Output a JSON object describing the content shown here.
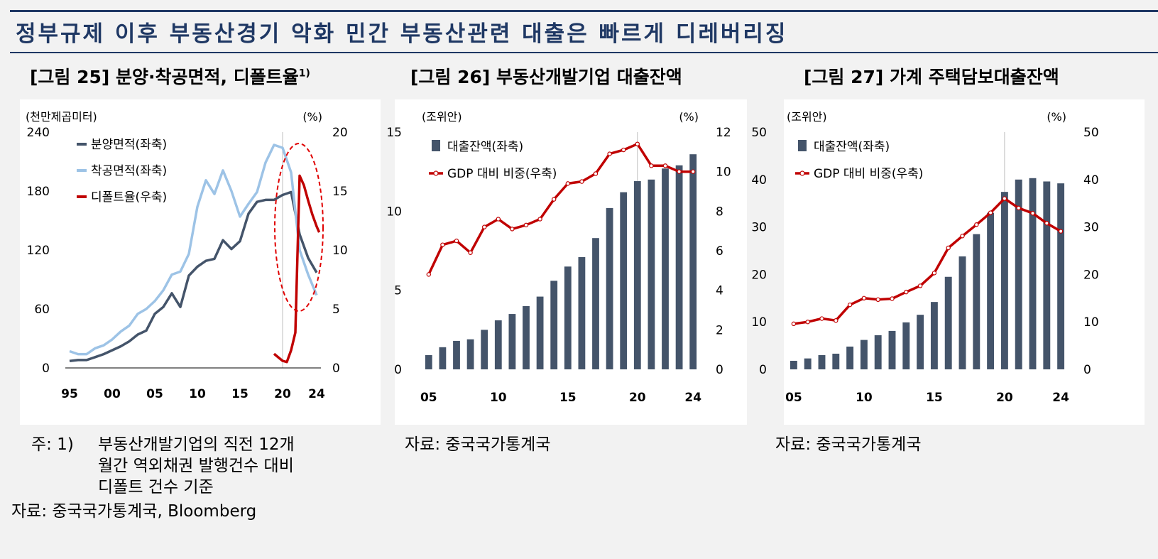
{
  "headline": "정부규제 이후 부동산경기 악화   민간 부동산관련 대출은 빠르게 디레버리징",
  "colors": {
    "navy": "#1f3864",
    "bar": "#44546a",
    "blue_light": "#9dc3e6",
    "red": "#c00000"
  },
  "fig25": {
    "title": "[그림 25] 분양·착공면적, 디폴트율",
    "title_sup": "1)",
    "note_prefix": "주: 1)",
    "note_lines": [
      "부동산개발기업의  직전  12개",
      "월간  역외채권  발행건수  대비",
      "디폴트  건수  기준"
    ],
    "source": "자료: 중국국가통계국,  Bloomberg"
  },
  "fig26": {
    "title": "[그림 26] 부동산개발기업 대출잔액",
    "source": "자료:  중국국가통계국"
  },
  "fig27": {
    "title": "[그림 27] 가계 주택담보대출잔액",
    "source": "자료:  중국국가통계국"
  },
  "chart_data": [
    {
      "type": "line",
      "title": "[그림 25] 분양·착공면적, 디폴트율",
      "left_unit": "(천만제곱미터)",
      "right_unit": "(%)",
      "left_ylim": [
        0,
        240
      ],
      "right_ylim": [
        0,
        20
      ],
      "left_ticks": [
        "0",
        "60",
        "120",
        "180",
        "240"
      ],
      "right_ticks": [
        "0",
        "5",
        "10",
        "15",
        "20"
      ],
      "x_ticks": [
        "95",
        "00",
        "05",
        "10",
        "15",
        "20",
        "24"
      ],
      "x_tick_years": [
        1995,
        2000,
        2005,
        2010,
        2015,
        2020,
        2024
      ],
      "x_range": [
        1994.5,
        2024.5
      ],
      "series": [
        {
          "name": "분양면적(좌축)",
          "axis": "left",
          "color": "#44546a",
          "x": [
            1995,
            1996,
            1997,
            1998,
            1999,
            2000,
            2001,
            2002,
            2003,
            2004,
            2005,
            2006,
            2007,
            2008,
            2009,
            2010,
            2011,
            2012,
            2013,
            2014,
            2015,
            2016,
            2017,
            2018,
            2019,
            2020,
            2021,
            2022,
            2023,
            2024
          ],
          "values": [
            7,
            8,
            8,
            11,
            14,
            18,
            22,
            27,
            34,
            38,
            55,
            62,
            76,
            62,
            94,
            103,
            109,
            111,
            130,
            121,
            129,
            157,
            169,
            171,
            171,
            176,
            179,
            136,
            112,
            97
          ]
        },
        {
          "name": "착공면적(좌축)",
          "axis": "left",
          "color": "#9dc3e6",
          "x": [
            1995,
            1996,
            1997,
            1998,
            1999,
            2000,
            2001,
            2002,
            2003,
            2004,
            2005,
            2006,
            2007,
            2008,
            2009,
            2010,
            2011,
            2012,
            2013,
            2014,
            2015,
            2016,
            2017,
            2018,
            2019,
            2020,
            2021,
            2022,
            2023,
            2024
          ],
          "values": [
            17,
            14,
            14,
            20,
            23,
            29,
            37,
            43,
            55,
            60,
            68,
            79,
            95,
            98,
            116,
            164,
            191,
            177,
            201,
            180,
            154,
            167,
            179,
            209,
            227,
            224,
            199,
            120,
            95,
            74
          ]
        },
        {
          "name": "디폴트율(우축)",
          "axis": "right",
          "color": "#c00000",
          "x": [
            2019.0,
            2019.5,
            2020.0,
            2020.5,
            2021.0,
            2021.5,
            2022.0,
            2022.5,
            2023.0,
            2023.5,
            2024.0,
            2024.3
          ],
          "values": [
            1.2,
            0.9,
            0.6,
            0.5,
            1.5,
            3.0,
            16.3,
            15.5,
            14.2,
            13.0,
            12.0,
            11.5
          ]
        }
      ]
    },
    {
      "type": "bar",
      "title": "[그림 26] 부동산개발기업 대출잔액",
      "left_unit": "(조위안)",
      "right_unit": "(%)",
      "left_ylim": [
        0,
        15
      ],
      "right_ylim": [
        0,
        12
      ],
      "left_ticks": [
        "0",
        "5",
        "10",
        "15"
      ],
      "right_ticks": [
        "0",
        "2",
        "4",
        "6",
        "8",
        "10",
        "12"
      ],
      "x_ticks": [
        "05",
        "10",
        "15",
        "20",
        "24"
      ],
      "categories": [
        "2005",
        "2006",
        "2007",
        "2008",
        "2009",
        "2010",
        "2011",
        "2012",
        "2013",
        "2014",
        "2015",
        "2016",
        "2017",
        "2018",
        "2019",
        "2020",
        "2021",
        "2022",
        "2023",
        "2024"
      ],
      "series": [
        {
          "name": "대출잔액(좌축)",
          "axis": "left",
          "kind": "bar",
          "color": "#44546a",
          "values": [
            0.9,
            1.4,
            1.8,
            1.9,
            2.5,
            3.1,
            3.5,
            4.0,
            4.6,
            5.6,
            6.5,
            7.1,
            8.3,
            10.2,
            11.2,
            11.9,
            12.0,
            12.7,
            12.9,
            13.6
          ]
        },
        {
          "name": "GDP 대비 비중(우축)",
          "axis": "right",
          "kind": "line",
          "color": "#c00000",
          "values": [
            4.8,
            6.3,
            6.5,
            5.9,
            7.2,
            7.6,
            7.1,
            7.3,
            7.6,
            8.6,
            9.4,
            9.5,
            9.9,
            10.9,
            11.1,
            11.4,
            10.3,
            10.3,
            10.0,
            10.0
          ]
        }
      ]
    },
    {
      "type": "bar",
      "title": "[그림 27] 가계 주택담보대출잔액",
      "left_unit": "(조위안)",
      "right_unit": "(%)",
      "left_ylim": [
        0,
        50
      ],
      "right_ylim": [
        0,
        50
      ],
      "left_ticks": [
        "0",
        "10",
        "20",
        "30",
        "40",
        "50"
      ],
      "right_ticks": [
        "0",
        "10",
        "20",
        "30",
        "40",
        "50"
      ],
      "x_ticks": [
        "05",
        "10",
        "15",
        "20",
        "24"
      ],
      "categories": [
        "2005",
        "2006",
        "2007",
        "2008",
        "2009",
        "2010",
        "2011",
        "2012",
        "2013",
        "2014",
        "2015",
        "2016",
        "2017",
        "2018",
        "2019",
        "2020",
        "2021",
        "2022",
        "2023",
        "2024"
      ],
      "series": [
        {
          "name": "대출잔액(좌축)",
          "axis": "left",
          "kind": "bar",
          "color": "#44546a",
          "values": [
            1.8,
            2.3,
            3.0,
            3.3,
            4.8,
            6.2,
            7.2,
            8.1,
            9.9,
            11.5,
            14.2,
            19.5,
            23.8,
            28.5,
            33.0,
            37.4,
            40.0,
            40.3,
            39.6,
            39.2
          ]
        },
        {
          "name": "GDP 대비 비중(우축)",
          "axis": "right",
          "kind": "line",
          "color": "#c00000",
          "values": [
            9.6,
            10.0,
            10.7,
            10.3,
            13.6,
            15.0,
            14.7,
            14.9,
            16.3,
            17.6,
            20.3,
            25.6,
            28.1,
            30.5,
            33.0,
            36.0,
            34.0,
            32.9,
            30.8,
            29.1
          ]
        }
      ]
    }
  ]
}
